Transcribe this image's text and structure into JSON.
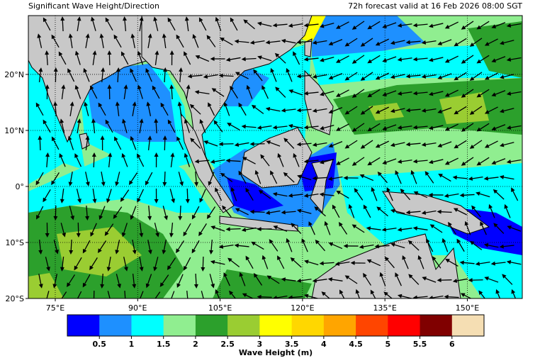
{
  "header": {
    "title_left": "Significant Wave Height/Direction",
    "title_right": "72h forecast valid at 16 Feb 2026 08:00 SGT"
  },
  "map": {
    "xlim": [
      70.1,
      160
    ],
    "ylim": [
      -20,
      30.5
    ],
    "xticks": [
      {
        "value": 75,
        "label": "75°E"
      },
      {
        "value": 90,
        "label": "90°E"
      },
      {
        "value": 105,
        "label": "105°E"
      },
      {
        "value": 120,
        "label": "120°E"
      },
      {
        "value": 135,
        "label": "135°E"
      },
      {
        "value": 150,
        "label": "150°E"
      }
    ],
    "yticks": [
      {
        "value": -20,
        "label": "20°S"
      },
      {
        "value": -10,
        "label": "10°S"
      },
      {
        "value": 0,
        "label": "0°"
      },
      {
        "value": 10,
        "label": "10°N"
      },
      {
        "value": 20,
        "label": "20°N"
      }
    ],
    "grid": true
  },
  "colorbar": {
    "label": "Wave Height (m)",
    "clim": [
      0,
      6.5
    ],
    "colors": [
      "#0000ff",
      "#1e90ff",
      "#00ffff",
      "#90ee90",
      "#2ca02c",
      "#9acd32",
      "#ffff00",
      "#ffd700",
      "#ffa500",
      "#ff4500",
      "#ff0000",
      "#800000",
      "#f5deb3"
    ],
    "ticks": [
      0.5,
      1,
      1.5,
      2,
      2.5,
      3,
      3.5,
      4,
      4.5,
      5,
      5.5,
      6
    ]
  }
}
